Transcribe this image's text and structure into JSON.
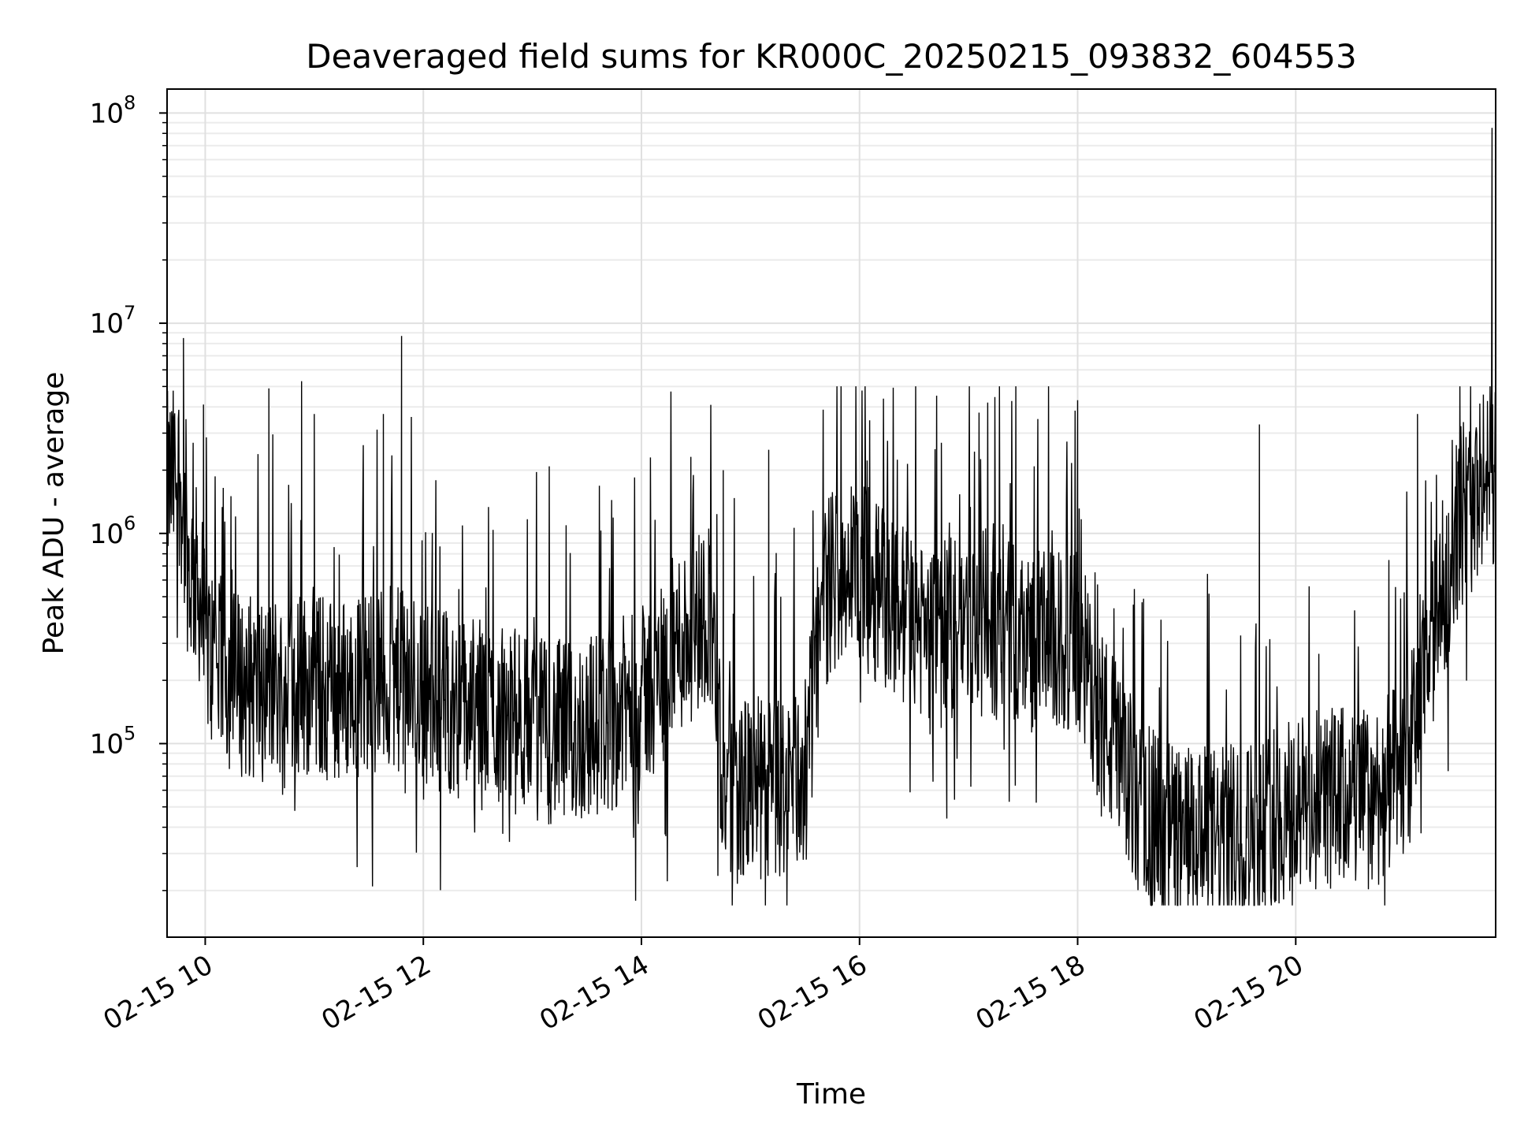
{
  "chart_data": {
    "type": "line",
    "title": "Deaveraged field sums for KR000C_20250215_093832_604553",
    "xlabel": "Time",
    "ylabel": "Peak ADU - average",
    "yscale": "log",
    "ylim": [
      12000,
      130000000
    ],
    "xlim": [
      "02-15 09:39",
      "02-15 21:50"
    ],
    "grid": true,
    "x_ticks": [
      "02-15 10",
      "02-15 12",
      "02-15 14",
      "02-15 16",
      "02-15 18",
      "02-15 20"
    ],
    "y_ticks": [
      {
        "base": "10",
        "exp": "5"
      },
      {
        "base": "10",
        "exp": "6"
      },
      {
        "base": "10",
        "exp": "7"
      },
      {
        "base": "10",
        "exp": "8"
      }
    ],
    "line_color": "#000000",
    "series": [
      {
        "x": [
          "02-15 09:39",
          "02-15 09:46",
          "02-15 09:51",
          "02-15 09:56",
          "02-15 10:00",
          "02-15 10:15",
          "02-15 10:30",
          "02-15 10:45",
          "02-15 11:00",
          "02-15 11:15",
          "02-15 11:30",
          "02-15 11:45",
          "02-15 12:00",
          "02-15 12:20",
          "02-15 12:40",
          "02-15 13:00",
          "02-15 13:20",
          "02-15 13:40",
          "02-15 14:00",
          "02-15 14:20",
          "02-15 14:38",
          "02-15 14:45",
          "02-15 15:00",
          "02-15 15:15",
          "02-15 15:30",
          "02-15 15:40",
          "02-15 15:50",
          "02-15 16:00",
          "02-15 16:20",
          "02-15 16:40",
          "02-15 17:00",
          "02-15 17:20",
          "02-15 17:40",
          "02-15 18:00",
          "02-15 18:15",
          "02-15 18:30",
          "02-15 18:45",
          "02-15 19:00",
          "02-15 19:20",
          "02-15 19:40",
          "02-15 20:00",
          "02-15 20:20",
          "02-15 20:40",
          "02-15 21:00",
          "02-15 21:15",
          "02-15 21:30",
          "02-15 21:40",
          "02-15 21:48",
          "02-15 21:50"
        ],
        "y": [
          1700000,
          1900000,
          650000,
          600000,
          280000,
          200000,
          180000,
          200000,
          190000,
          180000,
          200000,
          200000,
          180000,
          150000,
          140000,
          120000,
          110000,
          130000,
          160000,
          300000,
          450000,
          60000,
          60000,
          60000,
          70000,
          500000,
          700000,
          650000,
          450000,
          300000,
          400000,
          350000,
          300000,
          300000,
          120000,
          60000,
          40000,
          35000,
          35000,
          40000,
          50000,
          55000,
          55000,
          70000,
          300000,
          1200000,
          1500000,
          2000000,
          2000000
        ]
      }
    ],
    "spikes": [
      {
        "x": "02-15 09:48",
        "y": 8500000
      },
      {
        "x": "02-15 09:59",
        "y": 4100000
      },
      {
        "x": "02-15 10:35",
        "y": 2400000
      },
      {
        "x": "02-15 10:35",
        "y": 2700000
      },
      {
        "x": "02-15 10:35",
        "y": 4900000
      },
      {
        "x": "02-15 10:53",
        "y": 5300000
      },
      {
        "x": "02-15 11:00",
        "y": 3700000
      },
      {
        "x": "02-15 11:38",
        "y": 3700000
      },
      {
        "x": "02-15 11:48",
        "y": 8700000
      },
      {
        "x": "02-15 14:45",
        "y": 2000000
      },
      {
        "x": "02-15 15:10",
        "y": 2500000
      },
      {
        "x": "02-15 16:45",
        "y": 2700000
      },
      {
        "x": "02-15 18:00",
        "y": 4300000
      },
      {
        "x": "02-15 19:40",
        "y": 3300000
      },
      {
        "x": "02-15 21:07",
        "y": 3700000
      },
      {
        "x": "02-15 21:48",
        "y": 85000000
      }
    ],
    "dips": [
      {
        "x": "02-15 11:50",
        "y": 58000
      },
      {
        "x": "02-15 14:13",
        "y": 37000
      },
      {
        "x": "02-15 16:48",
        "y": 44000
      },
      {
        "x": "02-15 18:13",
        "y": 45000
      },
      {
        "x": "02-15 19:18",
        "y": 18000
      },
      {
        "x": "02-15 19:25",
        "y": 18000
      }
    ]
  }
}
